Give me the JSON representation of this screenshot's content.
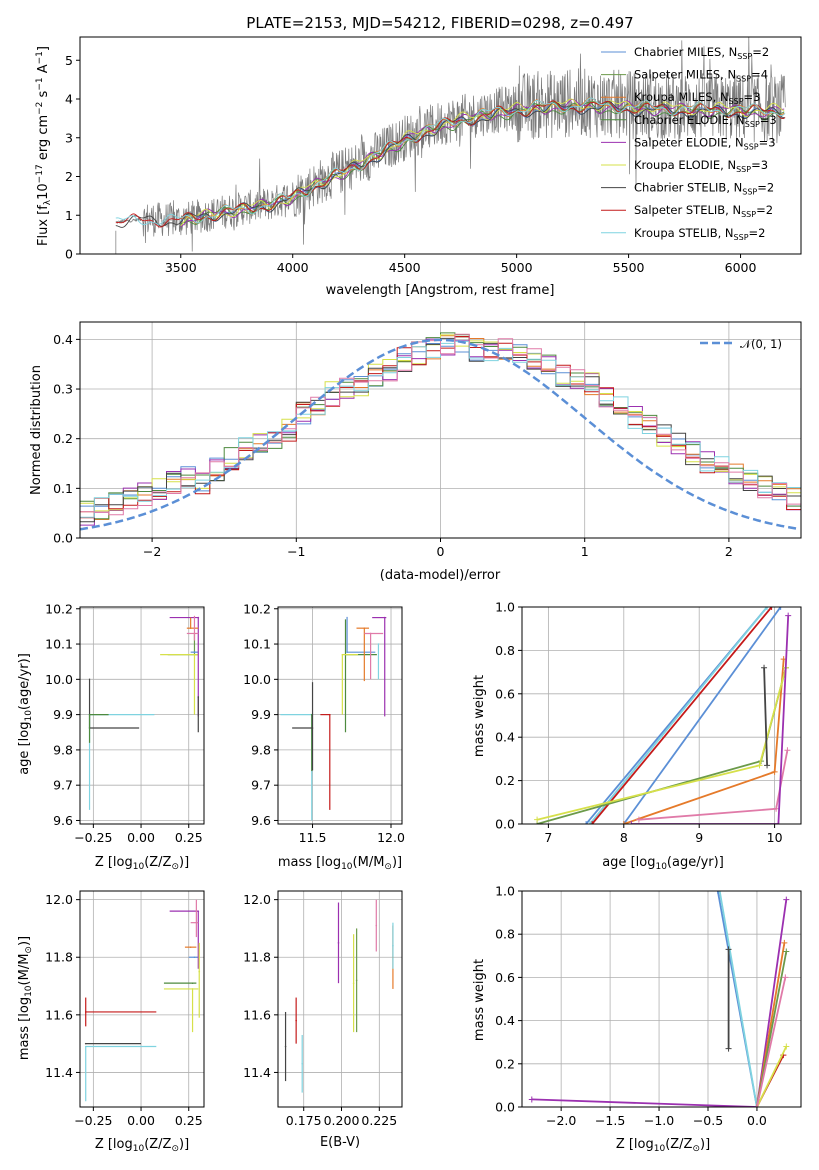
{
  "chart_data": [
    {
      "id": "spectrum",
      "type": "line",
      "title": "PLATE=2153, MJD=54212, FIBERID=0298, z=0.497",
      "xlabel": "wavelength [Angstrom, rest frame]",
      "ylabel_parts": [
        "Flux [f",
        "λ",
        "10",
        "−17",
        " erg cm",
        "−2",
        " s",
        "−1",
        " A",
        "−1",
        "]"
      ],
      "xlim": [
        3050,
        6270
      ],
      "ylim": [
        0,
        5.6
      ],
      "xticks": [
        3500,
        4000,
        4500,
        5000,
        5500,
        6000
      ],
      "yticks": [
        0,
        1,
        2,
        3,
        4,
        5
      ],
      "data_range": [
        3210,
        6200
      ],
      "continuum_x": [
        3210,
        3330,
        3500,
        3700,
        3900,
        4000,
        4150,
        4300,
        4500,
        4700,
        4900,
        5100,
        5300,
        5500,
        5700,
        5900,
        6100,
        6200
      ],
      "continuum_y": [
        0.82,
        0.9,
        0.88,
        1.1,
        1.3,
        1.5,
        1.95,
        2.35,
        3.0,
        3.45,
        3.7,
        3.85,
        3.9,
        3.85,
        3.8,
        3.78,
        3.75,
        3.75
      ],
      "legend": [
        {
          "name": "Chabrier MILES, N",
          "sub": "SSP",
          "n": "=2",
          "color": "#5b8fd6"
        },
        {
          "name": "Salpeter MILES, N",
          "sub": "SSP",
          "n": "=4",
          "color": "#6b9a4a"
        },
        {
          "name": "Kroupa MILES, N",
          "sub": "SSP",
          "n": "=3",
          "color": "#e57a2a"
        },
        {
          "name": "Chabrier ELODIE, N",
          "sub": "SSP",
          "n": "=3",
          "color": "#4d8a3e"
        },
        {
          "name": "Salpeter ELODIE, N",
          "sub": "SSP",
          "n": "=3",
          "color": "#9b30b0"
        },
        {
          "name": "Kroupa ELODIE, N",
          "sub": "SSP",
          "n": "=3",
          "color": "#d6e04a"
        },
        {
          "name": "Chabrier STELIB, N",
          "sub": "SSP",
          "n": "=2",
          "color": "#444444"
        },
        {
          "name": "Salpeter STELIB, N",
          "sub": "SSP",
          "n": "=2",
          "color": "#c41a1a"
        },
        {
          "name": "Kroupa STELIB, N",
          "sub": "SSP",
          "n": "=2",
          "color": "#7fd3e0"
        }
      ]
    },
    {
      "id": "residuals",
      "type": "histogram",
      "xlabel": "(data-model)/error",
      "ylabel": "Normed distribution",
      "xlim": [
        -2.5,
        2.5
      ],
      "ylim": [
        0,
        0.435
      ],
      "xticks": [
        -2,
        -1,
        0,
        1,
        2
      ],
      "yticks": [
        0.0,
        0.1,
        0.2,
        0.3,
        0.4
      ],
      "grid": true,
      "legend": {
        "label": "𝒩(0, 1)",
        "color": "#5b8fd6",
        "style": "dashed"
      },
      "bin_width": 0.1,
      "base_heights": [
        0.03,
        0.03,
        0.04,
        0.05,
        0.05,
        0.05,
        0.06,
        0.07,
        0.08,
        0.09,
        0.1,
        0.11,
        0.12,
        0.11,
        0.14,
        0.16,
        0.18,
        0.19,
        0.2,
        0.22,
        0.25,
        0.27,
        0.29,
        0.3,
        0.31,
        0.33,
        0.34,
        0.36,
        0.37,
        0.38,
        0.39,
        0.39,
        0.38,
        0.37,
        0.38,
        0.37,
        0.36,
        0.35,
        0.33,
        0.32,
        0.31,
        0.28,
        0.26,
        0.24,
        0.23,
        0.21,
        0.19,
        0.17,
        0.15,
        0.14,
        0.13,
        0.12,
        0.1,
        0.09,
        0.08,
        0.07,
        0.06,
        0.06,
        0.05,
        0.05
      ],
      "series_colors": [
        "#5b8fd6",
        "#e57a2a",
        "#4d8a3e",
        "#9b30b0",
        "#d6e04a",
        "#444444",
        "#c41a1a",
        "#7fd3e0",
        "#e07aa8"
      ]
    },
    {
      "id": "age_vs_Z",
      "type": "errorbar",
      "xlabel_parts": [
        "Z [log",
        "10",
        "(Z/Z",
        "⊙",
        ")]"
      ],
      "ylabel_parts": [
        "age  [log",
        "10",
        "(age/yr)]"
      ],
      "xlim": [
        -0.32,
        0.33
      ],
      "ylim": [
        9.59,
        10.205
      ],
      "xticks": [
        -0.25,
        0.0,
        0.25
      ],
      "yticks": [
        9.6,
        9.7,
        9.8,
        9.9,
        10.0,
        10.1,
        10.2
      ],
      "points": [
        {
          "x": -0.27,
          "xerr": [
            0.0,
            0.34
          ],
          "y": 9.9,
          "yerr": [
            0.27,
            0.0
          ],
          "color": "#7fd3e0"
        },
        {
          "x": -0.27,
          "xerr": [
            0.0,
            0.26
          ],
          "y": 9.862,
          "yerr": [
            0.0,
            0.14
          ],
          "color": "#444444"
        },
        {
          "x": -0.27,
          "xerr": [
            0.0,
            0.1
          ],
          "y": 9.9,
          "yerr": [
            0.08,
            0.0
          ],
          "color": "#4d8a3e"
        },
        {
          "x": 0.28,
          "xerr": [
            0.14,
            0.02
          ],
          "y": 10.07,
          "yerr": [
            0.0,
            0.06
          ],
          "color": "#6b9a4a"
        },
        {
          "x": 0.28,
          "xerr": [
            0.18,
            0.02
          ],
          "y": 10.07,
          "yerr": [
            0.17,
            0.0
          ],
          "color": "#d6e04a"
        },
        {
          "x": 0.28,
          "xerr": [
            0.02,
            0.02
          ],
          "y": 10.077,
          "yerr": [
            0.0,
            0.0
          ],
          "color": "#5b8fd6"
        },
        {
          "x": 0.3,
          "xerr": [
            0.15,
            0.0
          ],
          "y": 10.175,
          "yerr": [
            0.28,
            0.0
          ],
          "color": "#9b30b0"
        },
        {
          "x": 0.26,
          "xerr": [
            0.02,
            0.04
          ],
          "y": 10.145,
          "yerr": [
            0.0,
            0.03
          ],
          "color": "#e57a2a"
        },
        {
          "x": 0.28,
          "xerr": [
            0.04,
            0.02
          ],
          "y": 10.13,
          "yerr": [
            0.02,
            0.05
          ],
          "color": "#e07aa8"
        },
        {
          "x": 0.3,
          "xerr": [
            0.0,
            0.0
          ],
          "y": 9.95,
          "yerr": [
            0.1,
            0.0
          ],
          "color": "#444444"
        }
      ]
    },
    {
      "id": "age_vs_mass",
      "type": "errorbar",
      "xlabel_parts": [
        "mass [log",
        "10",
        "(M/M",
        "⊙",
        ")]"
      ],
      "xlim": [
        11.28,
        12.07
      ],
      "ylim": [
        9.59,
        10.205
      ],
      "xticks": [
        11.5,
        12.0
      ],
      "yticks": [
        9.6,
        9.7,
        9.8,
        9.9,
        10.0,
        10.1,
        10.2
      ],
      "points": [
        {
          "x": 11.495,
          "xerr": [
            0.2,
            0.0
          ],
          "y": 9.9,
          "yerr": [
            0.3,
            0.0
          ],
          "color": "#7fd3e0"
        },
        {
          "x": 11.495,
          "xerr": [
            0.0,
            0.0
          ],
          "y": 9.9,
          "yerr": [
            0.16,
            0.0
          ],
          "color": "#4d8a3e"
        },
        {
          "x": 11.5,
          "xerr": [
            0.13,
            0.0
          ],
          "y": 9.862,
          "yerr": [
            0.12,
            0.13
          ],
          "color": "#444444"
        },
        {
          "x": 11.61,
          "xerr": [
            0.06,
            0.0
          ],
          "y": 9.9,
          "yerr": [
            0.27,
            0.0
          ],
          "color": "#c41a1a"
        },
        {
          "x": 11.71,
          "xerr": [
            0.0,
            0.2
          ],
          "y": 10.07,
          "yerr": [
            0.22,
            0.1
          ],
          "color": "#4d8a3e"
        },
        {
          "x": 11.72,
          "xerr": [
            0.0,
            0.18
          ],
          "y": 10.077,
          "yerr": [
            0.0,
            0.1
          ],
          "color": "#5b8fd6"
        },
        {
          "x": 11.69,
          "xerr": [
            0.0,
            0.1
          ],
          "y": 10.07,
          "yerr": [
            0.17,
            0.0
          ],
          "color": "#d6e04a"
        },
        {
          "x": 11.96,
          "xerr": [
            0.08,
            0.01
          ],
          "y": 10.175,
          "yerr": [
            0.28,
            0.0
          ],
          "color": "#9b30b0"
        },
        {
          "x": 11.83,
          "xerr": [
            0.05,
            0.03
          ],
          "y": 10.145,
          "yerr": [
            0.15,
            0.0
          ],
          "color": "#e57a2a"
        },
        {
          "x": 11.87,
          "xerr": [
            0.04,
            0.08
          ],
          "y": 10.13,
          "yerr": [
            0.13,
            0.0
          ],
          "color": "#e07aa8"
        },
        {
          "x": 11.92,
          "xerr": [
            0.0,
            0.0
          ],
          "y": 10.1,
          "yerr": [
            0.1,
            0.0
          ],
          "color": "#7fd3e0"
        }
      ]
    },
    {
      "id": "weight_vs_age",
      "type": "line",
      "xlabel_parts": [
        "age  [log",
        "10",
        "(age/yr)]"
      ],
      "ylabel": "mass weight",
      "xlim": [
        6.65,
        10.35
      ],
      "ylim": [
        0,
        1
      ],
      "xticks": [
        7,
        8,
        9,
        10
      ],
      "yticks": [
        0.0,
        0.2,
        0.4,
        0.6,
        0.8,
        1.0
      ],
      "series": [
        {
          "color": "#5b8fd6",
          "x": [
            7.5,
            9.9
          ],
          "y": [
            0.0,
            1.0
          ]
        },
        {
          "color": "#5b8fd6",
          "x": [
            8.0,
            10.08
          ],
          "y": [
            0.0,
            1.0
          ]
        },
        {
          "color": "#7fd3e0",
          "x": [
            7.55,
            9.9
          ],
          "y": [
            0.0,
            1.0
          ]
        },
        {
          "color": "#c41a1a",
          "x": [
            7.58,
            9.96
          ],
          "y": [
            0.0,
            1.0
          ]
        },
        {
          "color": "#e57a2a",
          "x": [
            8.0,
            10.0,
            10.12
          ],
          "y": [
            0.0,
            0.24,
            0.76
          ]
        },
        {
          "color": "#6b9a4a",
          "x": [
            6.85,
            9.82,
            10.15
          ],
          "y": [
            0.0,
            0.29,
            0.72
          ]
        },
        {
          "color": "#d6e04a",
          "x": [
            6.85,
            9.8,
            10.15
          ],
          "y": [
            0.02,
            0.27,
            0.72
          ]
        },
        {
          "color": "#e07aa8",
          "x": [
            8.2,
            10.02,
            10.17
          ],
          "y": [
            0.02,
            0.07,
            0.34
          ]
        },
        {
          "color": "#9b30b0",
          "x": [
            8.1,
            10.05,
            10.18
          ],
          "y": [
            0.0,
            0.0,
            0.96
          ]
        },
        {
          "color": "#444444",
          "x": [
            9.86,
            9.9
          ],
          "y": [
            0.72,
            0.27
          ]
        }
      ]
    },
    {
      "id": "mass_vs_Z",
      "type": "errorbar",
      "xlabel_parts": [
        "Z [log",
        "10",
        "(Z/Z",
        "⊙",
        ")]"
      ],
      "ylabel_parts": [
        "mass [log",
        "10",
        "(M/M",
        "⊙",
        ")]"
      ],
      "xlim": [
        -0.32,
        0.33
      ],
      "ylim": [
        11.28,
        12.03
      ],
      "xticks": [
        -0.25,
        0.0,
        0.25
      ],
      "yticks": [
        11.4,
        11.6,
        11.8,
        12.0
      ],
      "points": [
        {
          "x": -0.29,
          "xerr": [
            0.0,
            0.37
          ],
          "y": 11.61,
          "yerr": [
            0.05,
            0.05
          ],
          "color": "#c41a1a"
        },
        {
          "x": -0.29,
          "xerr": [
            0.0,
            0.29
          ],
          "y": 11.5,
          "yerr": [
            0.0,
            0.0
          ],
          "color": "#444444"
        },
        {
          "x": -0.29,
          "xerr": [
            0.0,
            0.37
          ],
          "y": 11.49,
          "yerr": [
            0.19,
            0.0
          ],
          "color": "#7fd3e0"
        },
        {
          "x": 0.27,
          "xerr": [
            0.15,
            0.02
          ],
          "y": 11.71,
          "yerr": [
            0.0,
            0.0
          ],
          "color": "#4d8a3e"
        },
        {
          "x": 0.27,
          "xerr": [
            0.15,
            0.03
          ],
          "y": 11.69,
          "yerr": [
            0.15,
            0.0
          ],
          "color": "#d6e04a"
        },
        {
          "x": 0.28,
          "xerr": [
            0.03,
            0.02
          ],
          "y": 11.8,
          "yerr": [
            0.0,
            0.0
          ],
          "color": "#5b8fd6"
        },
        {
          "x": 0.26,
          "xerr": [
            0.03,
            0.03
          ],
          "y": 11.835,
          "yerr": [
            0.0,
            0.0
          ],
          "color": "#e57a2a"
        },
        {
          "x": 0.3,
          "xerr": [
            0.15,
            0.0
          ],
          "y": 11.96,
          "yerr": [
            0.2,
            0.0
          ],
          "color": "#9b30b0"
        },
        {
          "x": 0.29,
          "xerr": [
            0.03,
            0.01
          ],
          "y": 11.92,
          "yerr": [
            0.05,
            0.08
          ],
          "color": "#e07aa8"
        },
        {
          "x": 0.305,
          "xerr": [
            0.0,
            0.0
          ],
          "y": 11.75,
          "yerr": [
            0.16,
            0.1
          ],
          "color": "#d6e04a"
        }
      ]
    },
    {
      "id": "mass_vs_ebv",
      "type": "errorbar",
      "xlabel": "E(B-V)",
      "xlim": [
        0.158,
        0.24
      ],
      "ylim": [
        11.28,
        12.03
      ],
      "xticks": [
        0.175,
        0.2,
        0.225
      ],
      "yticks": [
        11.4,
        11.6,
        11.8,
        12.0
      ],
      "points": [
        {
          "x": 0.163,
          "y": 11.49,
          "yerr": [
            0.12,
            0.12
          ],
          "color": "#444444"
        },
        {
          "x": 0.17,
          "y": 11.58,
          "yerr": [
            0.08,
            0.08
          ],
          "color": "#c41a1a"
        },
        {
          "x": 0.174,
          "y": 11.43,
          "yerr": [
            0.1,
            0.1
          ],
          "color": "#7fd3e0"
        },
        {
          "x": 0.198,
          "y": 11.85,
          "yerr": [
            0.14,
            0.14
          ],
          "color": "#9b30b0"
        },
        {
          "x": 0.208,
          "y": 11.71,
          "yerr": [
            0.17,
            0.17
          ],
          "color": "#d6e04a"
        },
        {
          "x": 0.21,
          "y": 11.72,
          "yerr": [
            0.18,
            0.18
          ],
          "color": "#6b9a4a"
        },
        {
          "x": 0.223,
          "y": 11.91,
          "yerr": [
            0.09,
            0.09
          ],
          "color": "#e07aa8"
        },
        {
          "x": 0.234,
          "y": 11.8,
          "yerr": [
            0.11,
            0.11
          ],
          "color": "#e57a2a"
        },
        {
          "x": 0.234,
          "y": 11.84,
          "yerr": [
            0.08,
            0.08
          ],
          "color": "#7fd3e0"
        }
      ]
    },
    {
      "id": "weight_vs_Z",
      "type": "line",
      "xlabel_parts": [
        "Z [log",
        "10",
        "(Z/Z",
        "⊙",
        ")]"
      ],
      "ylabel": "mass weight",
      "xlim": [
        -2.4,
        0.45
      ],
      "ylim": [
        0,
        1
      ],
      "xticks": [
        -2.0,
        -1.5,
        -1.0,
        -0.5,
        0.0
      ],
      "yticks": [
        0.0,
        0.2,
        0.4,
        0.6,
        0.8,
        1.0
      ],
      "series": [
        {
          "color": "#5b8fd6",
          "x": [
            -0.4,
            0.0
          ],
          "y": [
            1.0,
            0.0
          ]
        },
        {
          "color": "#7fd3e0",
          "x": [
            -0.38,
            0.0
          ],
          "y": [
            1.0,
            0.0
          ]
        },
        {
          "color": "#9b30b0",
          "x": [
            -2.3,
            0.0,
            0.3
          ],
          "y": [
            0.035,
            0.0,
            0.96
          ]
        },
        {
          "color": "#e57a2a",
          "x": [
            0.0,
            0.28
          ],
          "y": [
            0.0,
            0.76
          ]
        },
        {
          "color": "#c41a1a",
          "x": [
            0.0,
            0.27
          ],
          "y": [
            0.0,
            0.24
          ]
        },
        {
          "color": "#6b9a4a",
          "x": [
            0.0,
            0.3
          ],
          "y": [
            0.0,
            0.72
          ]
        },
        {
          "color": "#d6e04a",
          "x": [
            0.0,
            0.3
          ],
          "y": [
            0.0,
            0.28
          ]
        },
        {
          "color": "#e07aa8",
          "x": [
            0.0,
            0.29
          ],
          "y": [
            0.0,
            0.6
          ]
        },
        {
          "color": "#444444",
          "x": [
            -0.29,
            -0.29
          ],
          "y": [
            0.73,
            0.27
          ]
        }
      ]
    }
  ]
}
